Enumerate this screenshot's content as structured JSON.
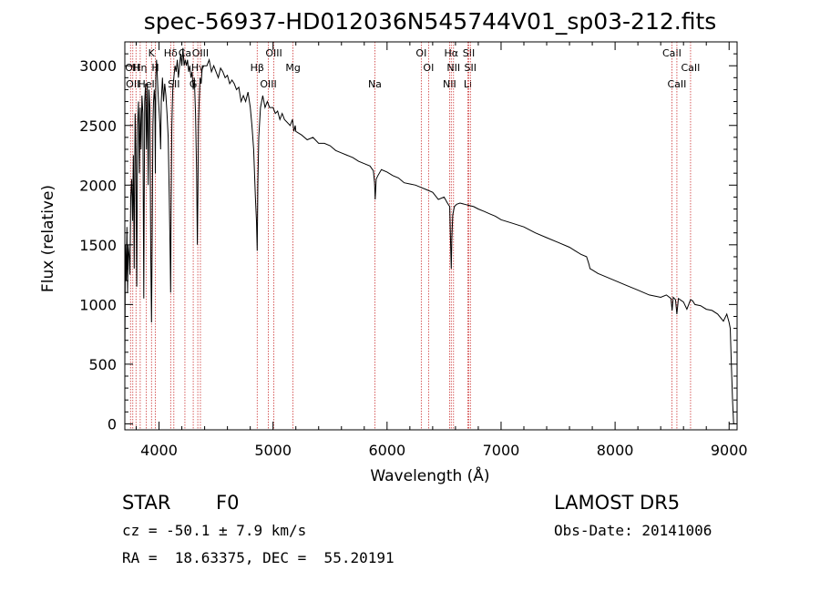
{
  "chart_data": {
    "type": "line",
    "title": "spec-56937-HD012036N545744V01_sp03-212.fits",
    "xlabel": "Wavelength (Å)",
    "ylabel": "Flux (relative)",
    "xlim": [
      3700,
      9070
    ],
    "ylim": [
      -50,
      3200
    ],
    "x_ticks": [
      4000,
      5000,
      6000,
      7000,
      8000,
      9000
    ],
    "y_ticks": [
      0,
      500,
      1000,
      1500,
      2000,
      2500,
      3000
    ],
    "grid": false,
    "line_color": "#000000",
    "marker_color": "#cc3333",
    "series": [
      {
        "x": [
          3700,
          3705,
          3712,
          3718,
          3724,
          3730,
          3738,
          3745,
          3752,
          3760,
          3768,
          3775,
          3782,
          3790,
          3797,
          3805,
          3812,
          3820,
          3828,
          3835,
          3842,
          3850,
          3858,
          3866,
          3874,
          3882,
          3889,
          3897,
          3905,
          3912,
          3920,
          3928,
          3934,
          3940,
          3946,
          3952,
          3958,
          3964,
          3968,
          3972,
          3978,
          3984,
          3990,
          3996,
          4002,
          4008,
          4014,
          4020,
          4030,
          4040,
          4050,
          4060,
          4070,
          4080,
          4090,
          4098,
          4102,
          4106,
          4112,
          4120,
          4130,
          4140,
          4150,
          4160,
          4170,
          4180,
          4190,
          4200,
          4210,
          4220,
          4230,
          4240,
          4250,
          4260,
          4270,
          4280,
          4290,
          4300,
          4310,
          4320,
          4330,
          4336,
          4341,
          4346,
          4352,
          4360,
          4370,
          4380,
          4400,
          4420,
          4440,
          4460,
          4480,
          4500,
          4520,
          4540,
          4560,
          4580,
          4600,
          4620,
          4640,
          4660,
          4680,
          4700,
          4720,
          4740,
          4760,
          4780,
          4800,
          4815,
          4830,
          4845,
          4855,
          4861,
          4867,
          4875,
          4890,
          4910,
          4930,
          4950,
          4970,
          5000,
          5020,
          5040,
          5060,
          5080,
          5100,
          5150,
          5170,
          5183,
          5195,
          5200,
          5250,
          5300,
          5350,
          5400,
          5450,
          5500,
          5550,
          5600,
          5650,
          5700,
          5750,
          5800,
          5850,
          5880,
          5890,
          5896,
          5905,
          5920,
          5950,
          6000,
          6050,
          6100,
          6150,
          6200,
          6250,
          6300,
          6350,
          6400,
          6450,
          6500,
          6530,
          6550,
          6558,
          6563,
          6568,
          6576,
          6590,
          6610,
          6640,
          6680,
          6720,
          6760,
          6800,
          6850,
          6900,
          6950,
          7000,
          7100,
          7200,
          7300,
          7400,
          7500,
          7600,
          7650,
          7700,
          7750,
          7770,
          7780,
          7800,
          7850,
          7900,
          8000,
          8100,
          8200,
          8300,
          8400,
          8450,
          8490,
          8500,
          8510,
          8520,
          8530,
          8542,
          8555,
          8570,
          8600,
          8630,
          8662,
          8680,
          8700,
          8750,
          8800,
          8850,
          8900,
          8950,
          8980,
          9000,
          9010,
          9020,
          9030,
          9040,
          9060
        ],
        "y": [
          500,
          1500,
          1200,
          1650,
          1100,
          1500,
          1400,
          1250,
          1900,
          2050,
          1700,
          2250,
          1300,
          2600,
          2300,
          1150,
          2500,
          2700,
          2100,
          2650,
          2300,
          2750,
          2600,
          1050,
          2700,
          2850,
          2300,
          2850,
          2000,
          2800,
          2650,
          1400,
          850,
          1500,
          2500,
          2700,
          2800,
          2700,
          2100,
          2900,
          3050,
          2950,
          2800,
          2700,
          2600,
          2500,
          2300,
          2700,
          2900,
          2700,
          2850,
          2750,
          2600,
          2400,
          1900,
          1400,
          1100,
          1800,
          2500,
          2800,
          2900,
          3000,
          2950,
          3050,
          2900,
          3000,
          3100,
          3000,
          3150,
          3000,
          3050,
          3000,
          3050,
          2950,
          3000,
          2900,
          2950,
          2800,
          2900,
          2600,
          2100,
          1500,
          1900,
          2500,
          2700,
          2900,
          2850,
          3000,
          3000,
          3000,
          3050,
          2950,
          3000,
          2950,
          2900,
          2980,
          2950,
          2900,
          2920,
          2850,
          2880,
          2850,
          2800,
          2820,
          2700,
          2750,
          2700,
          2780,
          2650,
          2500,
          2300,
          1900,
          1700,
          1450,
          2000,
          2400,
          2650,
          2750,
          2650,
          2700,
          2650,
          2650,
          2600,
          2620,
          2550,
          2600,
          2550,
          2500,
          2550,
          2450,
          2500,
          2450,
          2420,
          2380,
          2400,
          2350,
          2350,
          2330,
          2290,
          2270,
          2250,
          2230,
          2200,
          2180,
          2160,
          2120,
          2020,
          1880,
          2050,
          2080,
          2130,
          2110,
          2080,
          2060,
          2020,
          2010,
          2000,
          1980,
          1960,
          1940,
          1880,
          1900,
          1850,
          1820,
          1500,
          1300,
          1550,
          1750,
          1820,
          1840,
          1850,
          1840,
          1830,
          1820,
          1800,
          1780,
          1760,
          1740,
          1710,
          1680,
          1650,
          1600,
          1560,
          1520,
          1480,
          1450,
          1420,
          1400,
          1340,
          1300,
          1290,
          1260,
          1240,
          1200,
          1160,
          1120,
          1080,
          1060,
          1080,
          1050,
          950,
          1060,
          1050,
          1040,
          920,
          1050,
          1040,
          1020,
          960,
          1040,
          1030,
          1000,
          990,
          960,
          950,
          920,
          860,
          920,
          850,
          800,
          500,
          200,
          0,
          0
        ]
      }
    ],
    "line_markers": [
      {
        "x": 3750,
        "row": 1,
        "label": "OI"
      },
      {
        "x": 3770,
        "row": 2,
        "label": "OII"
      },
      {
        "x": 3798,
        "row": 1,
        "label": "H"
      },
      {
        "x": 3835,
        "row": 1,
        "label": "Hη"
      },
      {
        "x": 3889,
        "row": 2,
        "label": "HeI"
      },
      {
        "x": 3934,
        "row": 0,
        "label": "K"
      },
      {
        "x": 3968,
        "row": 1,
        "label": "H"
      },
      {
        "x": 4102,
        "row": 0,
        "label": "Hδ"
      },
      {
        "x": 4130,
        "row": 2,
        "label": "SII"
      },
      {
        "x": 4227,
        "row": 0,
        "label": "Ca"
      },
      {
        "x": 4300,
        "row": 2,
        "label": "G"
      },
      {
        "x": 4340,
        "row": 1,
        "label": "Hγ"
      },
      {
        "x": 4363,
        "row": 0,
        "label": "OIII"
      },
      {
        "x": 4861,
        "row": 1,
        "label": "Hβ"
      },
      {
        "x": 4959,
        "row": 2,
        "label": "OIII"
      },
      {
        "x": 5007,
        "row": 0,
        "label": "OIII"
      },
      {
        "x": 5175,
        "row": 1,
        "label": "Mg"
      },
      {
        "x": 5893,
        "row": 2,
        "label": "Na"
      },
      {
        "x": 6300,
        "row": 0,
        "label": "OI"
      },
      {
        "x": 6364,
        "row": 1,
        "label": "OI"
      },
      {
        "x": 6548,
        "row": 2,
        "label": "NII"
      },
      {
        "x": 6563,
        "row": 0,
        "label": "Hα"
      },
      {
        "x": 6583,
        "row": 1,
        "label": "NII"
      },
      {
        "x": 6708,
        "row": 2,
        "label": "Li"
      },
      {
        "x": 6717,
        "row": 0,
        "label": "SII"
      },
      {
        "x": 6731,
        "row": 1,
        "label": "SII"
      },
      {
        "x": 8498,
        "row": 0,
        "label": "CaII"
      },
      {
        "x": 8542,
        "row": 2,
        "label": "CaII"
      },
      {
        "x": 8662,
        "row": 1,
        "label": "CaII"
      }
    ]
  },
  "info": {
    "object_class": "STAR",
    "subclass": "F0",
    "survey": "LAMOST DR5",
    "redshift_line": "cz = -50.1 ± 7.9 km/s",
    "obs_date": "Obs-Date: 20141006",
    "coords": "RA =  18.63375, DEC =  55.20191"
  }
}
